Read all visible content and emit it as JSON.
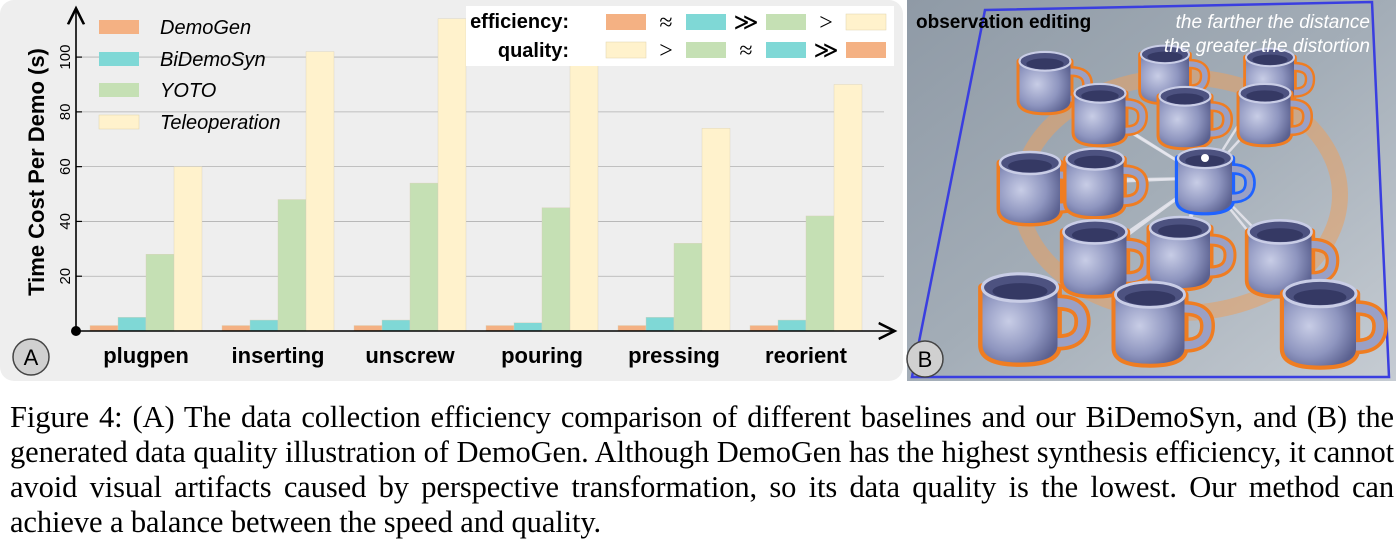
{
  "figure": {
    "panel_a": {
      "label": "A",
      "legend": [
        "DemoGen",
        "BiDemoSyn",
        "YOTO",
        "Teleoperation"
      ],
      "comparison": {
        "efficiency_label": "efficiency:",
        "quality_label": "quality:",
        "efficiency_order": [
          "DemoGen",
          "≈",
          "BiDemoSyn",
          "≫",
          "YOTO",
          ">",
          "Teleoperation"
        ],
        "quality_order": [
          "Teleoperation",
          ">",
          "YOTO",
          "≈",
          "BiDemoSyn",
          "≫",
          "DemoGen"
        ]
      }
    },
    "panel_b": {
      "label": "B",
      "title": "observation editing",
      "annotation_line1": "the farther the distance",
      "annotation_line2": "the greater the distortion"
    }
  },
  "chart_data": {
    "type": "bar",
    "ylabel": "Time Cost Per Demo (s)",
    "xlabel": "",
    "ylim": [
      0,
      115
    ],
    "yticks": [
      20,
      40,
      60,
      80,
      100
    ],
    "grid": true,
    "legend_position": "top-left",
    "categories": [
      "plugpen",
      "inserting",
      "unscrew",
      "pouring",
      "pressing",
      "reorient"
    ],
    "series": [
      {
        "name": "DemoGen",
        "color": "#f4b183",
        "values": [
          2,
          2,
          2,
          2,
          2,
          2
        ]
      },
      {
        "name": "BiDemoSyn",
        "color": "#7fd8d6",
        "values": [
          5,
          4,
          4,
          3,
          5,
          4
        ]
      },
      {
        "name": "YOTO",
        "color": "#c5e0b4",
        "values": [
          28,
          48,
          54,
          45,
          32,
          42
        ]
      },
      {
        "name": "Teleoperation",
        "color": "#fff2cc",
        "values": [
          60,
          102,
          114,
          102,
          74,
          90
        ]
      }
    ]
  },
  "caption": {
    "text": "Figure 4: (A) The data collection efficiency comparison of different baselines and our BiDemoSyn, and (B) the generated data quality illustration of DemoGen. Although DemoGen has the highest synthesis efficiency, it cannot avoid visual artifacts caused by perspective transformation, so its data quality is the lowest. Our method can achieve a balance between the speed and quality."
  }
}
